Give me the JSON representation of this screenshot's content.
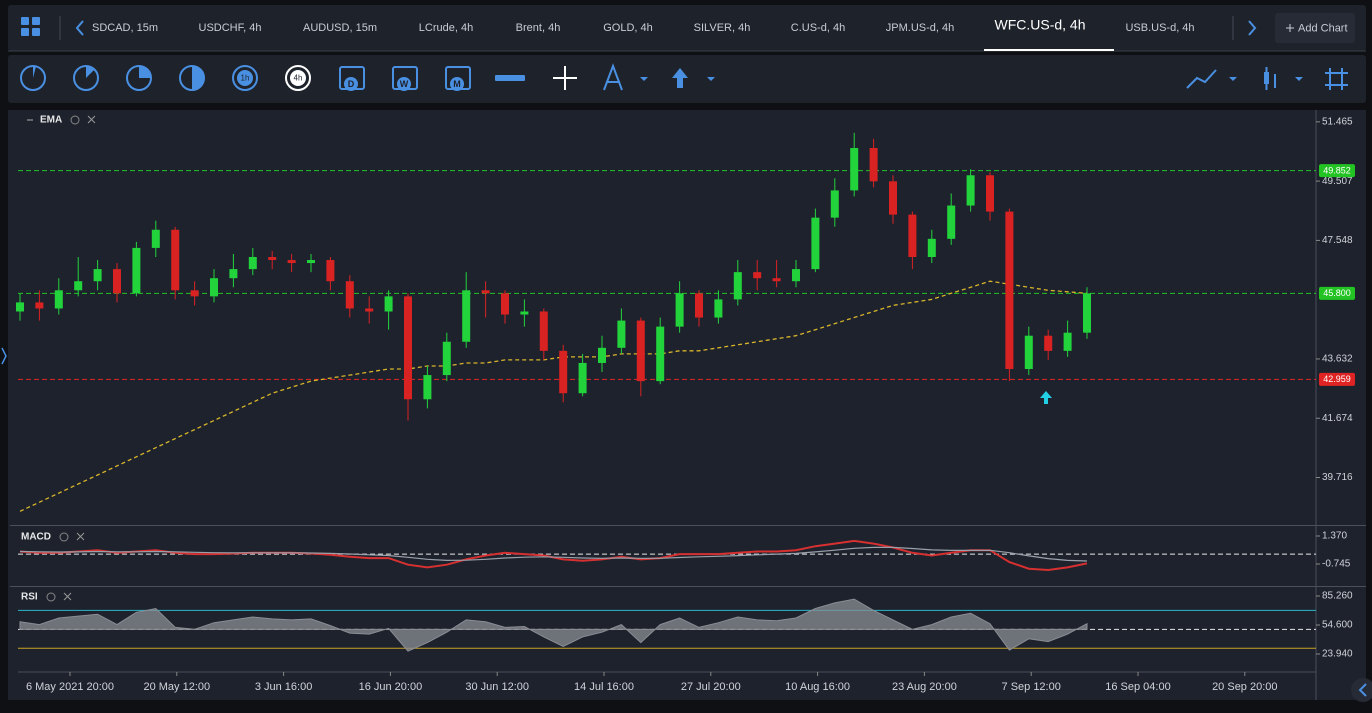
{
  "tabs": [
    "SDCAD, 15m",
    "USDCHF, 4h",
    "AUDUSD, 15m",
    "LCrude, 4h",
    "Brent, 4h",
    "GOLD, 4h",
    "SILVER, 4h",
    "C.US-d, 4h",
    "JPM.US-d, 4h",
    "WFC.US-d, 4h",
    "USB.US-d, 4h"
  ],
  "active_tab_index": 9,
  "add_chart": "Add Chart",
  "toolbar": {
    "hour_icons": [
      "1h",
      "4h"
    ],
    "calendar_icons": [
      "D",
      "W",
      "M"
    ]
  },
  "time_axis": [
    "6 May 2021 20:00",
    "20 May 12:00",
    "3 Jun 16:00",
    "16 Jun 20:00",
    "30 Jun 12:00",
    "14 Jul 16:00",
    "27 Jul 20:00",
    "10 Aug 16:00",
    "23 Aug 20:00",
    "7 Sep 12:00",
    "16 Sep 04:00",
    "20 Sep 20:00"
  ],
  "chart_data": [
    {
      "type": "candlestick",
      "title": "EMA",
      "up_color": "#22d33c",
      "down_color": "#d92323",
      "ohlc": [
        [
          45.2,
          45.8,
          44.9,
          45.5
        ],
        [
          45.5,
          45.9,
          44.9,
          45.3
        ],
        [
          45.3,
          46.3,
          45.1,
          45.9
        ],
        [
          45.9,
          47.0,
          45.7,
          46.2
        ],
        [
          46.2,
          46.9,
          45.9,
          46.6
        ],
        [
          46.6,
          46.8,
          45.5,
          45.8
        ],
        [
          45.8,
          47.5,
          45.7,
          47.3
        ],
        [
          47.3,
          48.2,
          47.0,
          47.9
        ],
        [
          47.9,
          48.0,
          45.6,
          45.9
        ],
        [
          45.9,
          46.2,
          45.4,
          45.7
        ],
        [
          45.7,
          46.6,
          45.5,
          46.3
        ],
        [
          46.3,
          47.1,
          46.0,
          46.6
        ],
        [
          46.6,
          47.3,
          46.4,
          47.0
        ],
        [
          47.0,
          47.2,
          46.6,
          46.9
        ],
        [
          46.9,
          47.1,
          46.5,
          46.8
        ],
        [
          46.8,
          47.1,
          46.5,
          46.9
        ],
        [
          46.9,
          47.0,
          45.9,
          46.2
        ],
        [
          46.2,
          46.4,
          45.0,
          45.3
        ],
        [
          45.3,
          45.7,
          44.8,
          45.2
        ],
        [
          45.2,
          45.9,
          44.6,
          45.7
        ],
        [
          45.7,
          45.8,
          41.6,
          42.3
        ],
        [
          42.3,
          43.4,
          42.0,
          43.1
        ],
        [
          43.1,
          44.5,
          42.9,
          44.2
        ],
        [
          44.2,
          46.5,
          44.0,
          45.9
        ],
        [
          45.9,
          46.2,
          45.0,
          45.8
        ],
        [
          45.8,
          45.9,
          44.8,
          45.1
        ],
        [
          45.1,
          45.6,
          44.7,
          45.2
        ],
        [
          45.2,
          45.3,
          43.6,
          43.9
        ],
        [
          43.9,
          44.1,
          42.2,
          42.5
        ],
        [
          42.5,
          43.8,
          42.4,
          43.5
        ],
        [
          43.5,
          44.4,
          43.2,
          44.0
        ],
        [
          44.0,
          45.3,
          43.8,
          44.9
        ],
        [
          44.9,
          45.0,
          42.4,
          42.9
        ],
        [
          42.9,
          45.0,
          42.8,
          44.7
        ],
        [
          44.7,
          46.2,
          44.5,
          45.8
        ],
        [
          45.8,
          45.9,
          44.7,
          45.0
        ],
        [
          45.0,
          45.9,
          44.8,
          45.6
        ],
        [
          45.6,
          46.9,
          45.4,
          46.5
        ],
        [
          46.5,
          46.9,
          45.9,
          46.3
        ],
        [
          46.3,
          46.9,
          46.0,
          46.2
        ],
        [
          46.2,
          46.9,
          46.0,
          46.6
        ],
        [
          46.6,
          48.6,
          46.5,
          48.3
        ],
        [
          48.3,
          49.6,
          48.0,
          49.2
        ],
        [
          49.2,
          51.1,
          49.0,
          50.6
        ],
        [
          50.6,
          50.9,
          49.3,
          49.5
        ],
        [
          49.5,
          49.7,
          48.1,
          48.4
        ],
        [
          48.4,
          48.5,
          46.6,
          47.0
        ],
        [
          47.0,
          47.9,
          46.8,
          47.6
        ],
        [
          47.6,
          49.1,
          47.4,
          48.7
        ],
        [
          48.7,
          49.9,
          48.5,
          49.7
        ],
        [
          49.7,
          49.8,
          48.2,
          48.5
        ],
        [
          48.5,
          48.6,
          42.9,
          43.3
        ],
        [
          43.3,
          44.7,
          43.1,
          44.4
        ],
        [
          44.4,
          44.6,
          43.6,
          43.9
        ],
        [
          43.9,
          44.9,
          43.7,
          44.5
        ],
        [
          44.5,
          46.0,
          44.3,
          45.8
        ]
      ],
      "ema": {
        "color": "#d8b52a",
        "values": [
          38.6,
          38.9,
          39.2,
          39.5,
          39.8,
          40.1,
          40.4,
          40.7,
          41.0,
          41.3,
          41.6,
          41.9,
          42.2,
          42.5,
          42.7,
          42.9,
          43.0,
          43.1,
          43.2,
          43.3,
          43.3,
          43.4,
          43.4,
          43.5,
          43.5,
          43.6,
          43.6,
          43.6,
          43.7,
          43.7,
          43.7,
          43.8,
          43.8,
          43.8,
          43.9,
          43.9,
          44.0,
          44.1,
          44.2,
          44.3,
          44.4,
          44.6,
          44.8,
          45.0,
          45.2,
          45.4,
          45.5,
          45.6,
          45.8,
          46.0,
          46.2,
          46.1,
          46.0,
          45.9,
          45.85,
          45.8
        ]
      },
      "ylim": [
        38.18,
        51.79
      ],
      "yticks": [
        51.465,
        49.507,
        47.548,
        43.632,
        41.674,
        39.716
      ],
      "levels": [
        {
          "value": 49.852,
          "color": "#22c322"
        },
        {
          "value": 45.8,
          "label": "45.800",
          "color": "#22c322"
        },
        {
          "value": 42.959,
          "color": "#e02424"
        }
      ]
    },
    {
      "type": "macd",
      "title": "MACD",
      "series": [
        {
          "color": "#d63030",
          "values": [
            0.2,
            0.1,
            0.1,
            0.2,
            0.3,
            0.1,
            0.2,
            0.3,
            0.1,
            0,
            0,
            0.05,
            0.1,
            0.1,
            0.1,
            0.05,
            -0.05,
            -0.2,
            -0.3,
            -0.3,
            -0.8,
            -1.0,
            -0.8,
            -0.4,
            -0.1,
            0.1,
            0.0,
            -0.1,
            -0.4,
            -0.5,
            -0.4,
            -0.2,
            -0.4,
            -0.3,
            0.0,
            0.0,
            0.0,
            0.1,
            0.2,
            0.2,
            0.3,
            0.6,
            0.8,
            1.0,
            0.8,
            0.5,
            0.1,
            -0.1,
            0.1,
            0.3,
            0.3,
            -0.6,
            -1.1,
            -1.2,
            -1.0,
            -0.7
          ]
        },
        {
          "color": "#9aa0aa",
          "values": [
            0.2,
            0.18,
            0.16,
            0.17,
            0.2,
            0.18,
            0.18,
            0.2,
            0.18,
            0.14,
            0.11,
            0.1,
            0.1,
            0.1,
            0.1,
            0.09,
            0.06,
            0.01,
            -0.05,
            -0.1,
            -0.24,
            -0.39,
            -0.47,
            -0.46,
            -0.39,
            -0.29,
            -0.23,
            -0.2,
            -0.24,
            -0.29,
            -0.31,
            -0.29,
            -0.31,
            -0.31,
            -0.25,
            -0.2,
            -0.16,
            -0.11,
            -0.05,
            0,
            0.06,
            0.17,
            0.3,
            0.44,
            0.51,
            0.51,
            0.43,
            0.32,
            0.28,
            0.28,
            0.29,
            0.11,
            -0.13,
            -0.34,
            -0.47,
            -0.52
          ]
        }
      ],
      "ylim": [
        -2.33,
        2.05
      ],
      "yticks": [
        {
          "value": 1.37,
          "label": "1.370"
        },
        -0.745
      ],
      "levels": [
        {
          "value": 0,
          "color": "#e8e8e8"
        }
      ]
    },
    {
      "type": "rsi",
      "title": "RSI",
      "color": "#8a8d93",
      "values": [
        58,
        55,
        62,
        64,
        66,
        55,
        68,
        72,
        52,
        50,
        57,
        60,
        63,
        61,
        60,
        61,
        54,
        46,
        45,
        51,
        27,
        36,
        47,
        60,
        58,
        52,
        53,
        42,
        32,
        42,
        47,
        55,
        36,
        55,
        62,
        52,
        57,
        63,
        60,
        59,
        62,
        72,
        78,
        82,
        70,
        60,
        50,
        55,
        63,
        67,
        56,
        28,
        40,
        37,
        45,
        56
      ],
      "ylim": [
        4.9,
        93.7
      ],
      "yticks": [
        {
          "value": 85.26,
          "label": "85.260"
        },
        {
          "value": 54.6,
          "label": "54.600"
        },
        {
          "value": 23.94,
          "label": "23.940"
        }
      ],
      "levels": [
        {
          "value": 70,
          "color": "#2ab7c9"
        },
        {
          "value": 50,
          "color": "#e8e8e8"
        },
        {
          "value": 30,
          "color": "#c9a227"
        }
      ]
    }
  ]
}
